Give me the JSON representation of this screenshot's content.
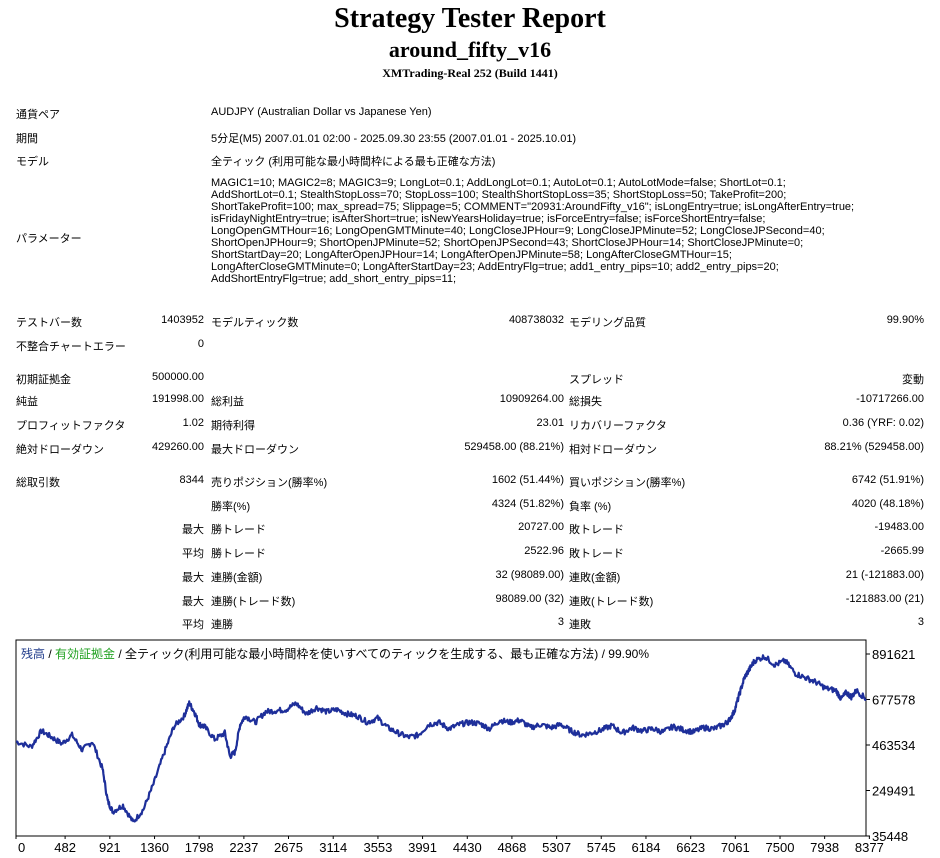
{
  "report": {
    "title": "Strategy Tester Report",
    "ea_name": "around_fifty_v16",
    "server_build": "XMTrading-Real 252 (Build 1441)"
  },
  "settings": {
    "symbol_label": "通貨ペア",
    "symbol_value": "AUDJPY (Australian Dollar vs Japanese Yen)",
    "period_label": "期間",
    "period_value": "5分足(M5) 2007.01.01 02:00 - 2025.09.30 23:55 (2007.01.01 - 2025.10.01)",
    "model_label": "モデル",
    "model_value": "全ティック (利用可能な最小時間枠による最も正確な方法)",
    "params_label": "パラメーター",
    "params_lines": [
      "MAGIC1=10; MAGIC2=8; MAGIC3=9; LongLot=0.1; AddLongLot=0.1; AutoLot=0.1; AutoLotMode=false; ShortLot=0.1;",
      "AddShortLot=0.1; StealthStopLoss=70; StopLoss=100; StealthShortStopLoss=35; ShortStopLoss=50; TakeProfit=200;",
      "ShortTakeProfit=100; max_spread=75; Slippage=5; COMMENT=\"20931:AroundFifty_v16\"; isLongEntry=true; isLongAfterEntry=true;",
      "isFridayNightEntry=true; isAfterShort=true; isNewYearsHoliday=true; isForceEntry=false; isForceShortEntry=false;",
      "LongOpenGMTHour=16; LongOpenGMTMinute=40; LongCloseJPHour=9; LongCloseJPMinute=52; LongCloseJPSecond=40;",
      "ShortOpenJPHour=9; ShortOpenJPMinute=52; ShortOpenJPSecond=43; ShortCloseJPHour=14; ShortCloseJPMinute=0;",
      "ShortStartDay=20; LongAfterOpenJPHour=14; LongAfterOpenJPMinute=58; LongAfterCloseGMTHour=15;",
      "LongAfterCloseGMTMinute=0; LongAfterStartDay=23; AddEntryFlg=true; add1_entry_pips=10; add2_entry_pips=20;",
      "AddShortEntryFlg=true; add_short_entry_pips=11;"
    ]
  },
  "stats": {
    "bars_label": "テストバー数",
    "bars_value": "1403952",
    "ticks_label": "モデルティック数",
    "ticks_value": "408738032",
    "quality_label": "モデリング品質",
    "quality_value": "99.90%",
    "mismatch_label": "不整合チャートエラー",
    "mismatch_value": "0",
    "deposit_label": "初期証拠金",
    "deposit_value": "500000.00",
    "spread_label": "スプレッド",
    "spread_value": "変動",
    "net_label": "純益",
    "net_value": "191998.00",
    "gross_profit_label": "総利益",
    "gross_profit_value": "10909264.00",
    "gross_loss_label": "総損失",
    "gross_loss_value": "-10717266.00",
    "pf_label": "プロフィットファクタ",
    "pf_value": "1.02",
    "payoff_label": "期待利得",
    "payoff_value": "23.01",
    "recovery_label": "リカバリーファクタ",
    "recovery_value": "0.36 (YRF: 0.02)",
    "abs_dd_label": "絶対ドローダウン",
    "abs_dd_value": "429260.00",
    "max_dd_label": "最大ドローダウン",
    "max_dd_value": "529458.00 (88.21%)",
    "rel_dd_label": "相対ドローダウン",
    "rel_dd_value": "88.21% (529458.00)",
    "trades_label": "総取引数",
    "trades_value": "8344",
    "short_label": "売りポジション(勝率%)",
    "short_value": "1602 (51.44%)",
    "long_label": "買いポジション(勝率%)",
    "long_value": "6742 (51.91%)",
    "winrate_label": "勝率(%)",
    "winrate_value": "4324 (51.82%)",
    "lossrate_label": "負率 (%)",
    "lossrate_value": "4020 (48.18%)",
    "max_word": "最大",
    "avg_word": "平均",
    "largest_win_label": "勝トレード",
    "largest_win_value": "20727.00",
    "largest_loss_label": "敗トレード",
    "largest_loss_value": "-19483.00",
    "avg_win_label": "勝トレード",
    "avg_win_value": "2522.96",
    "avg_loss_label": "敗トレード",
    "avg_loss_value": "-2665.99",
    "max_consec_win_amt_label": "連勝(金額)",
    "max_consec_win_amt_value": "32 (98089.00)",
    "max_consec_loss_amt_label": "連敗(金額)",
    "max_consec_loss_amt_value": "21 (-121883.00)",
    "max_consec_win_cnt_label": "連勝(トレード数)",
    "max_consec_win_cnt_value": "98089.00 (32)",
    "max_consec_loss_cnt_label": "連敗(トレード数)",
    "max_consec_loss_cnt_value": "-121883.00 (21)",
    "avg_consec_win_label": "連勝",
    "avg_consec_win_value": "3",
    "avg_consec_loss_label": "連敗",
    "avg_consec_loss_value": "3"
  },
  "chart_legend": {
    "balance": "残高",
    "sep1": " / ",
    "equity": "有効証拠金",
    "rest": " / 全ティック(利用可能な最小時間枠を使いすべてのティックを生成する、最も正確な方法) / 99.90%"
  },
  "chart_data": {
    "type": "line",
    "title": "",
    "xlabel": "",
    "ylabel": "",
    "x_ticks": [
      "0",
      "482",
      "921",
      "1360",
      "1798",
      "2237",
      "2675",
      "3114",
      "3553",
      "3991",
      "4430",
      "4868",
      "5307",
      "5745",
      "6184",
      "6623",
      "7061",
      "7500",
      "7938",
      "8377"
    ],
    "y_ticks": [
      "891621",
      "677578",
      "463534",
      "249491",
      "35448"
    ],
    "xlim": [
      0,
      8344
    ],
    "ylim": [
      35448,
      891621
    ],
    "colors": {
      "balance": "#1e2f9a",
      "equity": "#21a121"
    },
    "series": [
      {
        "name": "残高",
        "x": [
          0,
          150,
          250,
          350,
          450,
          550,
          650,
          750,
          850,
          900,
          950,
          1050,
          1150,
          1250,
          1350,
          1450,
          1550,
          1650,
          1700,
          1750,
          1800,
          1850,
          1950,
          2050,
          2100,
          2150,
          2200,
          2250,
          2350,
          2450,
          2550,
          2650,
          2750,
          2850,
          2950,
          3050,
          3150,
          3250,
          3350,
          3450,
          3550,
          3650,
          3750,
          3850,
          3950,
          4050,
          4150,
          4250,
          4350,
          4450,
          4550,
          4650,
          4750,
          4850,
          4950,
          5050,
          5150,
          5250,
          5350,
          5450,
          5550,
          5650,
          5750,
          5850,
          5950,
          6050,
          6150,
          6250,
          6350,
          6450,
          6550,
          6650,
          6750,
          6850,
          6950,
          7000,
          7050,
          7100,
          7150,
          7200,
          7250,
          7350,
          7450,
          7550,
          7650,
          7750,
          7850,
          7950,
          8050,
          8100,
          8150,
          8200,
          8250,
          8344
        ],
        "y": [
          480000,
          455000,
          530000,
          500000,
          470000,
          510000,
          440000,
          480000,
          350000,
          200000,
          150000,
          180000,
          100000,
          160000,
          280000,
          420000,
          550000,
          600000,
          660000,
          620000,
          560000,
          550000,
          490000,
          520000,
          410000,
          430000,
          560000,
          600000,
          570000,
          620000,
          625000,
          630000,
          660000,
          610000,
          640000,
          620000,
          630000,
          610000,
          600000,
          570000,
          590000,
          545000,
          520000,
          500000,
          510000,
          560000,
          570000,
          540000,
          560000,
          570000,
          565000,
          540000,
          580000,
          570000,
          580000,
          545000,
          560000,
          545000,
          560000,
          530000,
          510000,
          520000,
          535000,
          555000,
          520000,
          545000,
          530000,
          540000,
          525000,
          550000,
          535000,
          525000,
          545000,
          540000,
          560000,
          580000,
          620000,
          700000,
          780000,
          820000,
          860000,
          880000,
          840000,
          860000,
          800000,
          780000,
          760000,
          730000,
          720000,
          680000,
          710000,
          690000,
          720000,
          680000
        ]
      }
    ]
  }
}
